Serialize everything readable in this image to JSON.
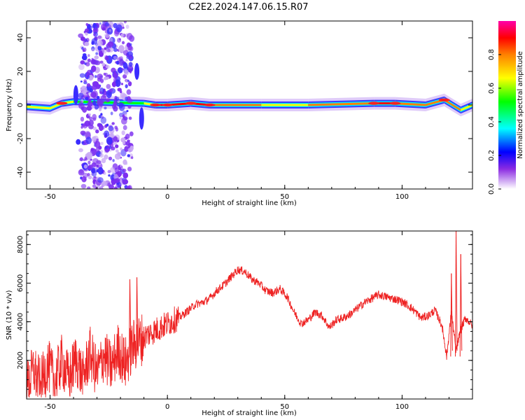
{
  "title": "C2E2.2024.147.06.15.R07",
  "chart_data": [
    {
      "type": "heatmap",
      "xlabel": "Height of straight line (km)",
      "ylabel": "Frequency (Hz)",
      "xlim": [
        -60,
        130
      ],
      "ylim": [
        -50,
        50
      ],
      "xticks": [
        -50,
        0,
        50,
        100
      ],
      "yticks": [
        -40,
        -20,
        0,
        20,
        40
      ],
      "colorbar": {
        "label": "Normalized spectral amplitude",
        "range": [
          0,
          1
        ],
        "ticks": [
          "0.0",
          "0.2",
          "0.4",
          "0.6",
          "0.8"
        ],
        "colors": [
          "#ffffff",
          "#8a2be2",
          "#0000ff",
          "#00ffff",
          "#00ff00",
          "#ffff00",
          "#ff8000",
          "#ff0000",
          "#ff00aa"
        ]
      },
      "dominant_band": [
        {
          "x": -60,
          "y": -1,
          "amp": 0.55
        },
        {
          "x": -50,
          "y": -2,
          "amp": 0.5
        },
        {
          "x": -45,
          "y": 1,
          "amp": 0.8
        },
        {
          "x": -40,
          "y": 2,
          "amp": 0.45
        },
        {
          "x": -10,
          "y": 1,
          "amp": 0.5
        },
        {
          "x": -5,
          "y": 0,
          "amp": 0.8
        },
        {
          "x": 0,
          "y": 0,
          "amp": 0.9
        },
        {
          "x": 10,
          "y": 1,
          "amp": 0.85
        },
        {
          "x": 18,
          "y": 0,
          "amp": 0.8
        },
        {
          "x": 40,
          "y": 0,
          "amp": 0.6
        },
        {
          "x": 60,
          "y": 0,
          "amp": 0.6
        },
        {
          "x": 88,
          "y": 1,
          "amp": 0.85
        },
        {
          "x": 97,
          "y": 1,
          "amp": 0.85
        },
        {
          "x": 110,
          "y": 0,
          "amp": 0.55
        },
        {
          "x": 118,
          "y": 3,
          "amp": 0.8
        },
        {
          "x": 125,
          "y": -3,
          "amp": 0.7
        },
        {
          "x": 130,
          "y": 0,
          "amp": 0.6
        }
      ],
      "noise_region_x": [
        -37,
        -15
      ]
    },
    {
      "type": "line",
      "xlabel": "Height of straight line (km)",
      "ylabel": "SNR (10 * v/v)",
      "xlim": [
        -60,
        130
      ],
      "ylim": [
        0,
        8700
      ],
      "xticks": [
        -50,
        0,
        50,
        100
      ],
      "yticks": [
        2000,
        4000,
        6000,
        8000
      ],
      "color": "#ee2222",
      "series": [
        {
          "x": [
            -60,
            -57,
            -54,
            -51,
            -48,
            -45,
            -42,
            -39,
            -36,
            -33,
            -30,
            -27,
            -24,
            -21,
            -18,
            -15,
            -12,
            -9,
            -6,
            -3,
            0,
            3,
            6,
            9,
            12,
            15,
            18,
            21,
            24,
            27,
            30,
            33,
            36,
            39,
            42,
            45,
            48,
            51,
            54,
            57,
            60,
            63,
            66,
            69,
            72,
            75,
            78,
            81,
            84,
            87,
            90,
            93,
            96,
            99,
            102,
            105,
            108,
            111,
            114,
            117,
            119,
            121,
            123,
            125,
            127,
            130
          ],
          "y": [
            600,
            1500,
            700,
            1800,
            900,
            2000,
            1000,
            2100,
            1100,
            2400,
            1300,
            2300,
            1600,
            2600,
            1800,
            2700,
            3000,
            3300,
            3500,
            3700,
            3900,
            4100,
            4300,
            4600,
            4900,
            5000,
            5200,
            5600,
            5900,
            6300,
            6700,
            6600,
            6200,
            6000,
            5600,
            5500,
            5700,
            5300,
            4500,
            3900,
            4100,
            4500,
            4300,
            3700,
            4100,
            4200,
            4400,
            4700,
            5000,
            5200,
            5400,
            5300,
            5200,
            5100,
            4900,
            4600,
            4200,
            4300,
            4600,
            3800,
            2200,
            4500,
            2500,
            3600,
            4200,
            3800
          ]
        }
      ],
      "spikes": [
        {
          "x": -16,
          "y": 6200
        },
        {
          "x": -13,
          "y": 6300
        },
        {
          "x": 121,
          "y": 6500
        },
        {
          "x": 123,
          "y": 8700
        },
        {
          "x": 125,
          "y": 7500
        }
      ]
    }
  ]
}
